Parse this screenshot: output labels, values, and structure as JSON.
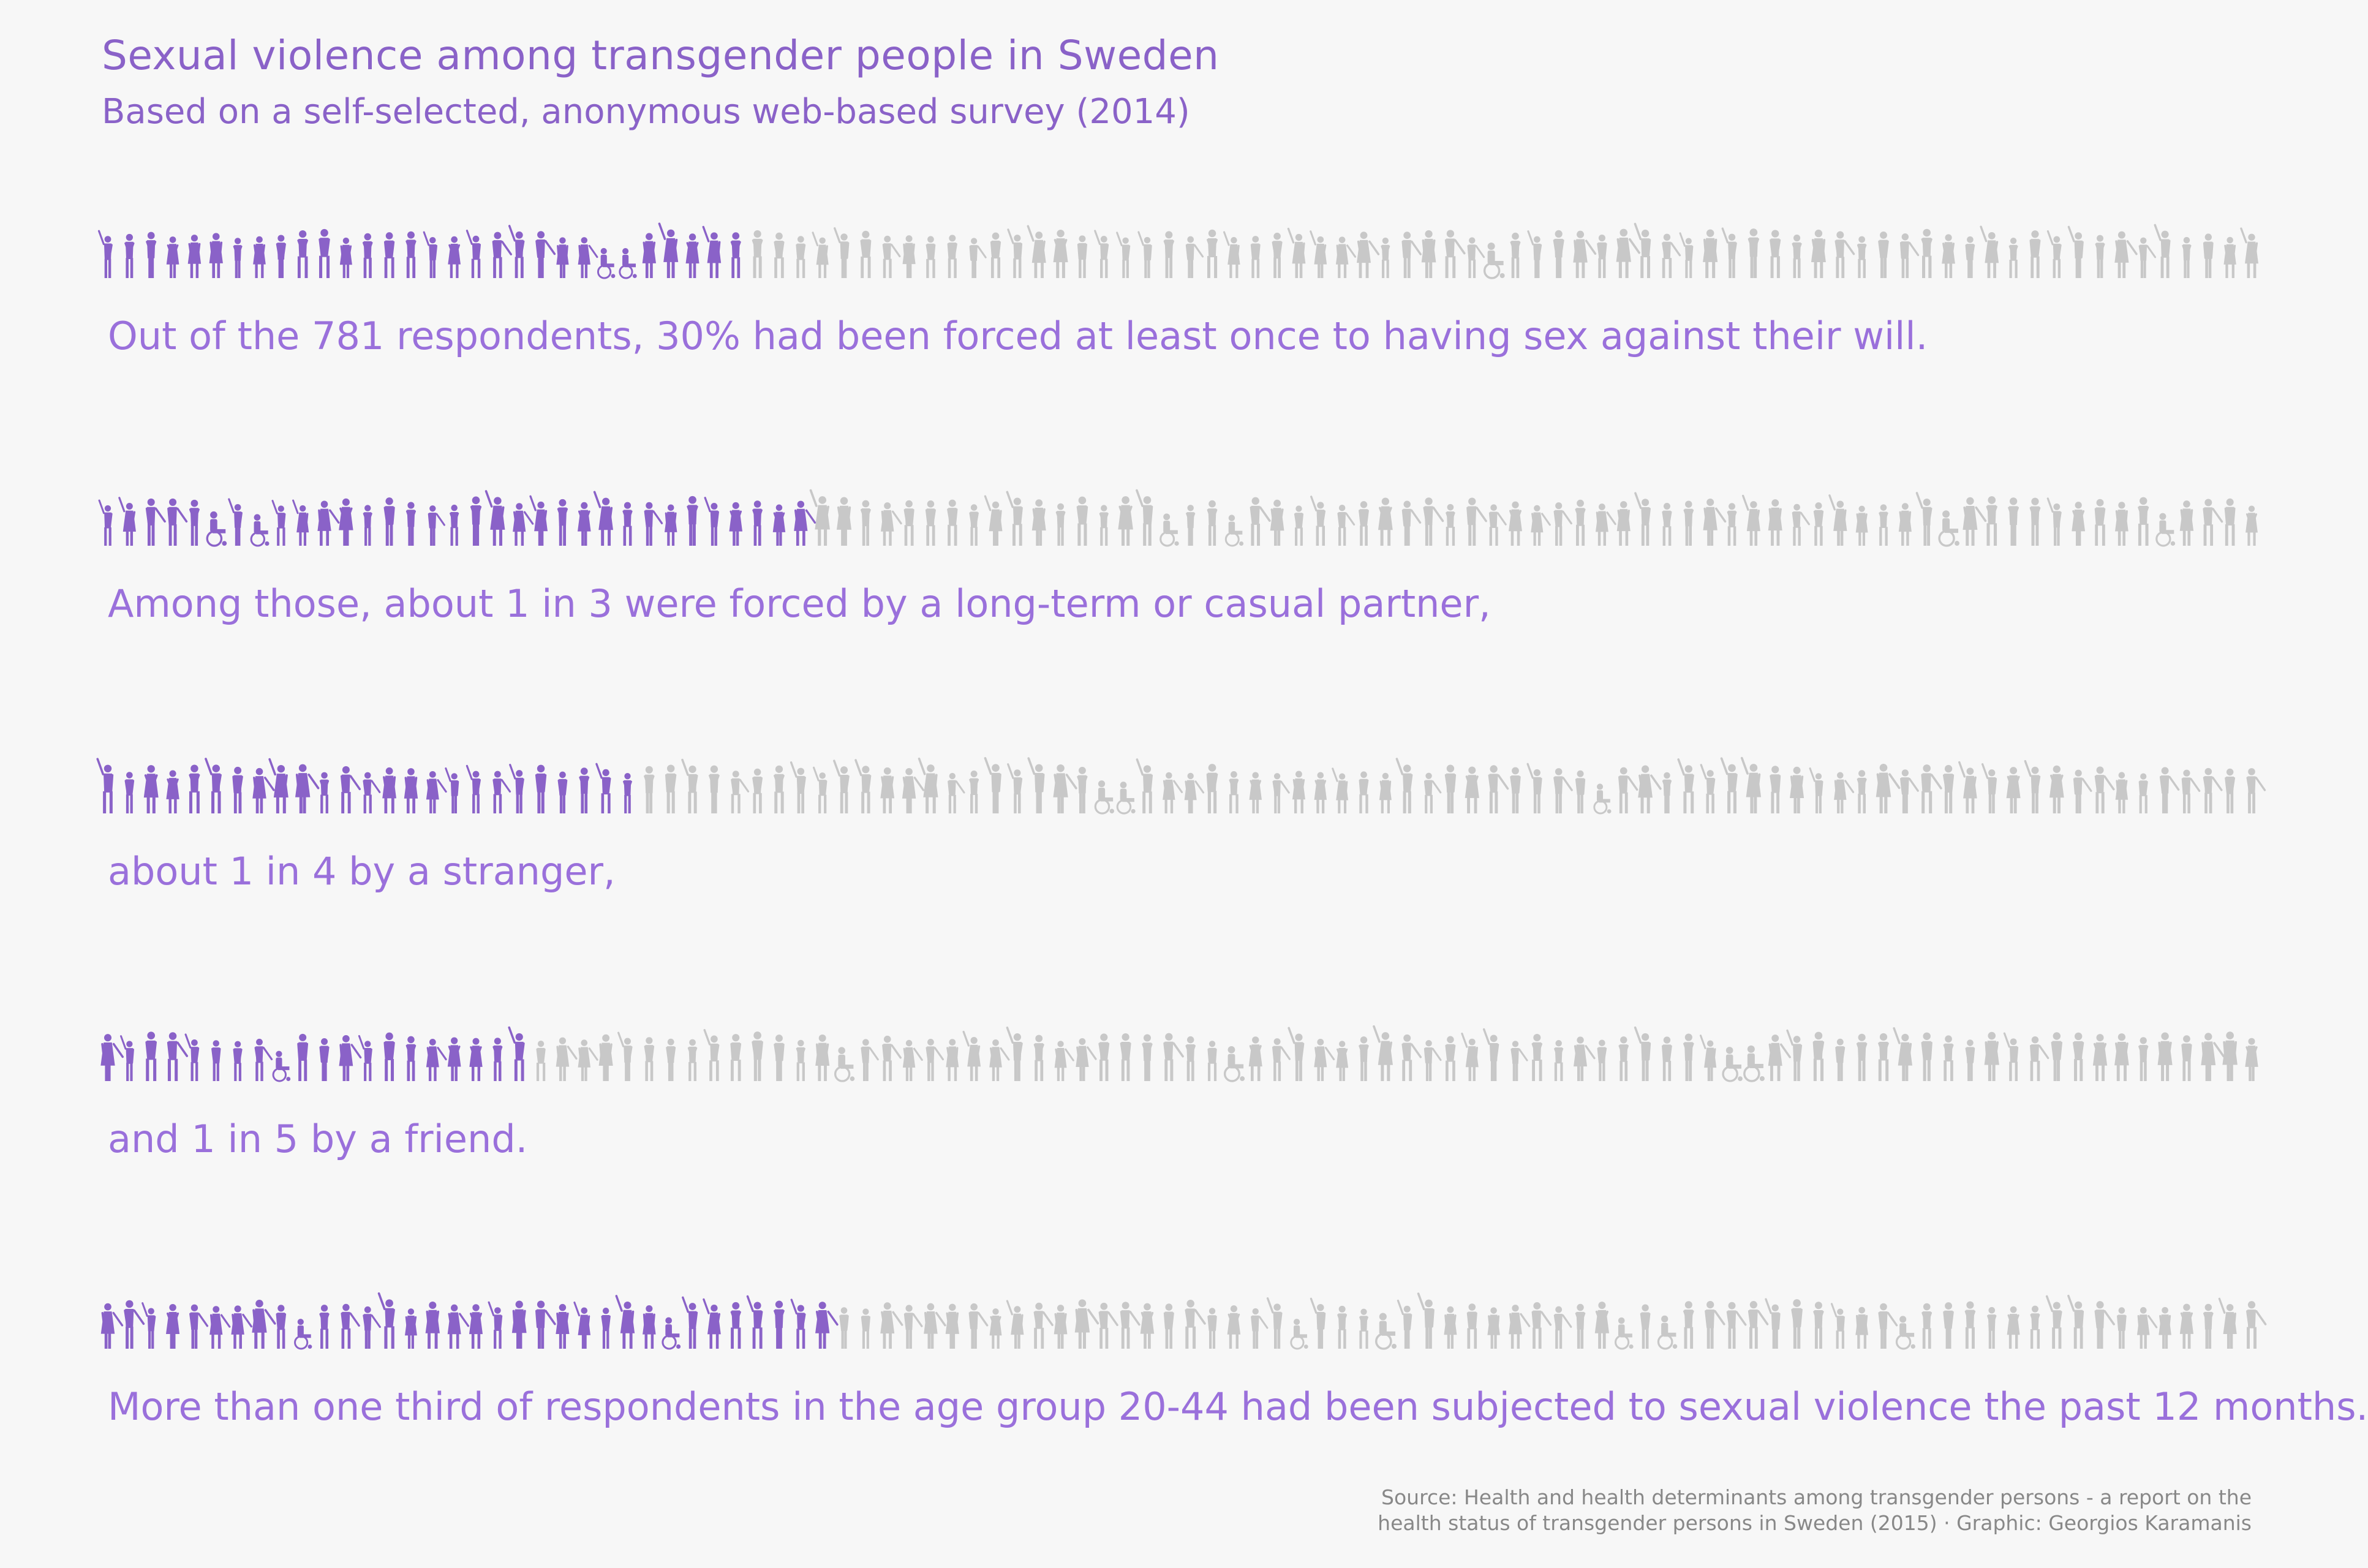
{
  "title": "Sexual violence among transgender people in Sweden",
  "subtitle": "Based on a self-selected, anonymous web-based survey (2014)",
  "colors": {
    "highlight": "#8a62c8",
    "rest": "#c8c8c8",
    "caption": "#9a70db",
    "background": "#f7f7f7",
    "source": "#888888"
  },
  "chart_data": [
    {
      "type": "pictogram",
      "caption": "Out of the 781 respondents, 30% had been forced at least once to having sex against their will.",
      "total_icons": 100,
      "highlighted": 30
    },
    {
      "type": "pictogram",
      "caption": "Among those, about 1 in 3 were forced by a long-term or casual partner,",
      "total_icons": 100,
      "highlighted": 33
    },
    {
      "type": "pictogram",
      "caption": "about 1 in 4 by a stranger,",
      "total_icons": 100,
      "highlighted": 25
    },
    {
      "type": "pictogram",
      "caption": "and 1 in 5 by a friend.",
      "total_icons": 100,
      "highlighted": 20
    },
    {
      "type": "pictogram",
      "caption": "More than one third of respondents in the age group 20-44 had been subjected to sexual violence the past 12 months.",
      "total_icons": 100,
      "highlighted": 34
    }
  ],
  "source": {
    "line1": "Source: Health and health determinants among transgender persons - a report on the",
    "line2": "health status of transgender persons in Sweden (2015) · Graphic: Georgios Karamanis"
  }
}
